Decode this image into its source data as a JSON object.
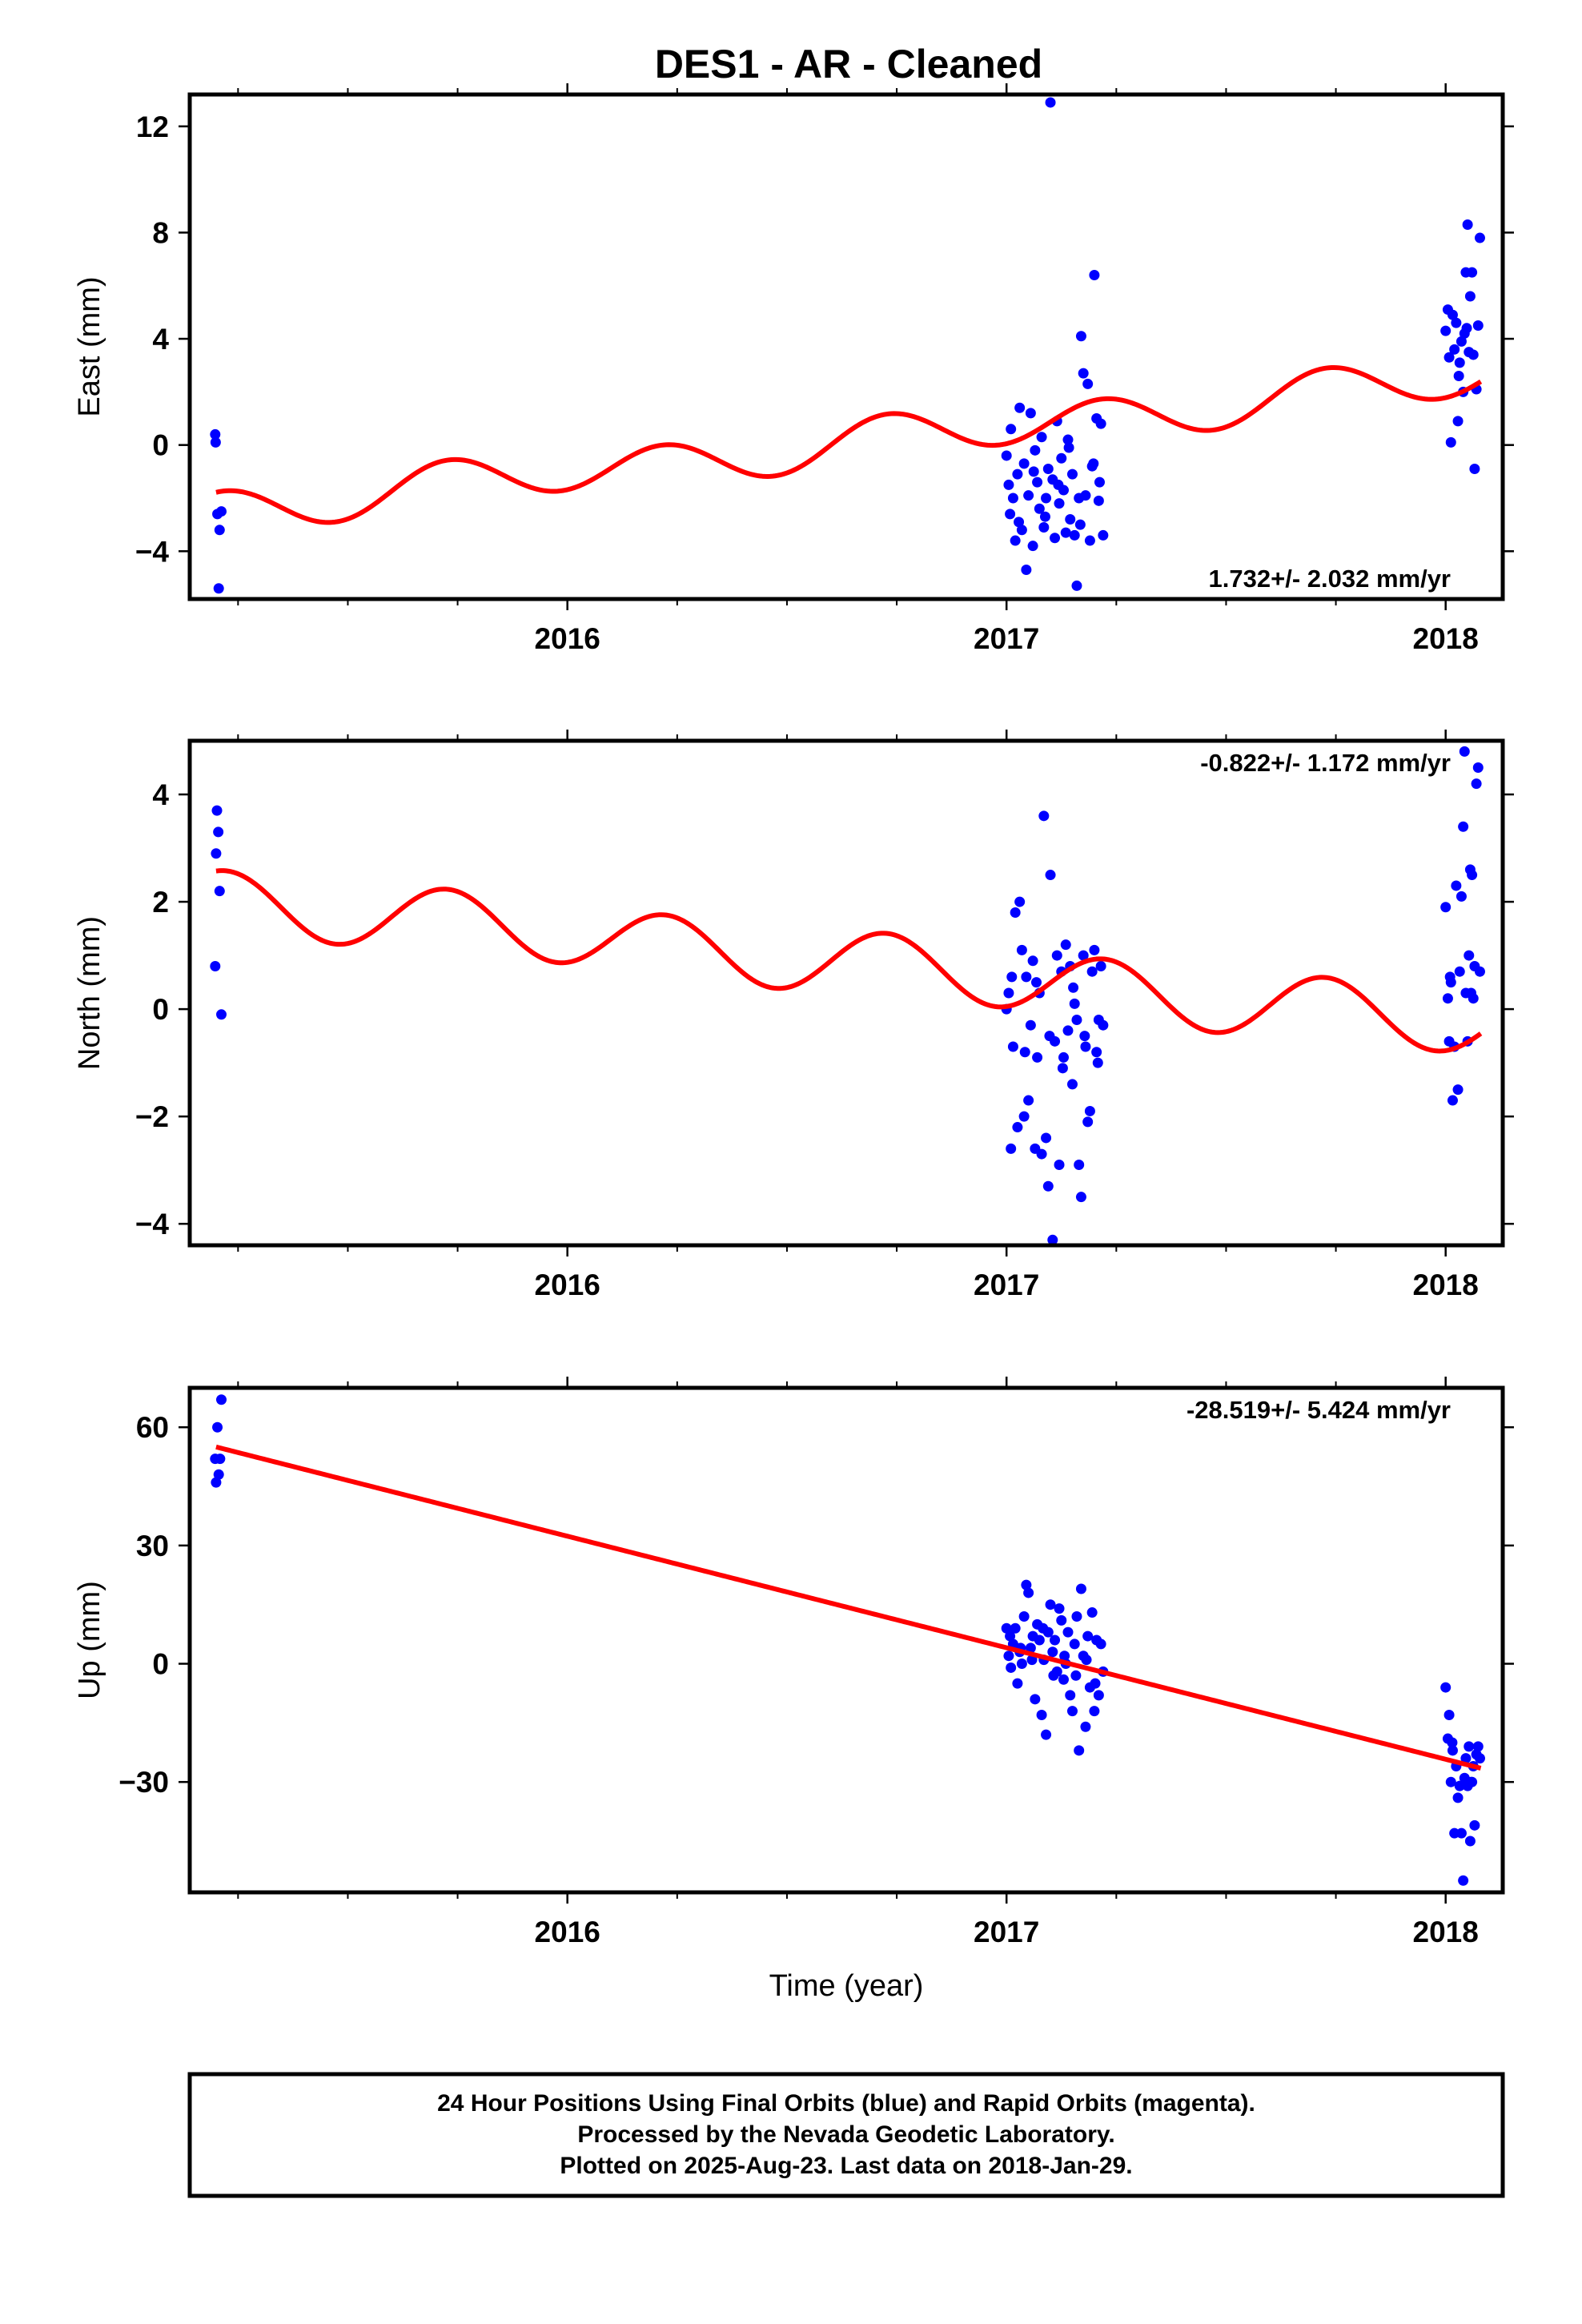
{
  "title": "DES1  - AR - Cleaned",
  "xlabel": "Time (year)",
  "colors": {
    "final_orbits": "#0000ff",
    "model": "#ff0000",
    "frame": "#000000"
  },
  "footer": {
    "line1": "24 Hour Positions Using Final Orbits (blue) and Rapid Orbits (magenta).",
    "line2": "Processed by the Nevada Geodetic Laboratory.",
    "line3": "Plotted on 2025-Aug-23. Last data on 2018-Jan-29."
  },
  "chart_data": [
    {
      "type": "scatter",
      "name": "east",
      "ylabel": "East (mm)",
      "xlim": [
        2015.14,
        2018.13
      ],
      "ylim": [
        -5.8,
        13.2
      ],
      "yticks": [
        -4,
        0,
        4,
        8,
        12
      ],
      "yticklabels": [
        "−4",
        "0",
        "4",
        "8",
        "12"
      ],
      "xticks": [
        2016,
        2017,
        2018
      ],
      "xticklabels": [
        "2016",
        "2017",
        "2018"
      ],
      "xminor": [
        2015.25,
        2015.5,
        2015.75,
        2016.25,
        2016.5,
        2016.75,
        2017.25,
        2017.5,
        2017.75
      ],
      "rate_label": "1.732+/- 2.032 mm/yr",
      "rate_position": "bottom-right",
      "model": {
        "kind": "seasonal",
        "t0": 2016.6,
        "offset": 0.0,
        "slope": 1.732,
        "annual_sin": 0.2,
        "annual_cos": 0.0,
        "semiannual_sin": 0.8,
        "semiannual_cos": 0.0,
        "start": 2015.2,
        "end": 2018.08
      },
      "points": [
        [
          2015.198,
          0.4
        ],
        [
          2015.199,
          0.1
        ],
        [
          2015.203,
          -2.6
        ],
        [
          2015.208,
          -3.2
        ],
        [
          2015.212,
          -2.5
        ],
        [
          2015.206,
          -5.4
        ],
        [
          2017.0,
          -0.4
        ],
        [
          2017.005,
          -1.5
        ],
        [
          2017.01,
          0.6
        ],
        [
          2017.015,
          -2.0
        ],
        [
          2017.02,
          -3.6
        ],
        [
          2017.025,
          -1.1
        ],
        [
          2017.03,
          1.4
        ],
        [
          2017.035,
          -3.2
        ],
        [
          2017.04,
          -0.7
        ],
        [
          2017.045,
          -4.7
        ],
        [
          2017.05,
          -1.9
        ],
        [
          2017.055,
          1.2
        ],
        [
          2017.06,
          -3.8
        ],
        [
          2017.065,
          -0.2
        ],
        [
          2017.07,
          -1.4
        ],
        [
          2017.075,
          -2.4
        ],
        [
          2017.08,
          0.3
        ],
        [
          2017.085,
          -3.1
        ],
        [
          2017.09,
          -2.0
        ],
        [
          2017.095,
          -0.9
        ],
        [
          2017.1,
          12.9
        ],
        [
          2017.105,
          -1.3
        ],
        [
          2017.11,
          -3.5
        ],
        [
          2017.115,
          0.9
        ],
        [
          2017.12,
          -2.2
        ],
        [
          2017.125,
          -0.5
        ],
        [
          2017.13,
          -1.7
        ],
        [
          2017.135,
          -3.3
        ],
        [
          2017.14,
          0.2
        ],
        [
          2017.145,
          -2.8
        ],
        [
          2017.15,
          -1.1
        ],
        [
          2017.155,
          -3.4
        ],
        [
          2017.16,
          -5.3
        ],
        [
          2017.165,
          -2.0
        ],
        [
          2017.17,
          4.1
        ],
        [
          2017.175,
          2.7
        ],
        [
          2017.18,
          -1.9
        ],
        [
          2017.185,
          2.3
        ],
        [
          2017.19,
          -3.6
        ],
        [
          2017.195,
          -0.8
        ],
        [
          2017.2,
          6.4
        ],
        [
          2017.205,
          1.0
        ],
        [
          2017.21,
          -2.1
        ],
        [
          2017.215,
          0.8
        ],
        [
          2017.22,
          -3.4
        ],
        [
          2017.008,
          -2.6
        ],
        [
          2017.028,
          -2.9
        ],
        [
          2017.062,
          -1.0
        ],
        [
          2017.088,
          -2.7
        ],
        [
          2017.118,
          -1.5
        ],
        [
          2017.142,
          -0.1
        ],
        [
          2017.168,
          -3.0
        ],
        [
          2017.198,
          -0.7
        ],
        [
          2017.212,
          -1.4
        ],
        [
          2018.0,
          4.3
        ],
        [
          2018.005,
          5.1
        ],
        [
          2018.008,
          3.3
        ],
        [
          2018.012,
          0.1
        ],
        [
          2018.016,
          4.9
        ],
        [
          2018.02,
          3.6
        ],
        [
          2018.024,
          4.6
        ],
        [
          2018.028,
          0.9
        ],
        [
          2018.032,
          3.1
        ],
        [
          2018.036,
          3.9
        ],
        [
          2018.04,
          2.0
        ],
        [
          2018.043,
          4.2
        ],
        [
          2018.046,
          6.5
        ],
        [
          2018.05,
          8.3
        ],
        [
          2018.053,
          3.5
        ],
        [
          2018.056,
          5.6
        ],
        [
          2018.06,
          6.5
        ],
        [
          2018.063,
          3.4
        ],
        [
          2018.066,
          -0.9
        ],
        [
          2018.07,
          2.1
        ],
        [
          2018.074,
          4.5
        ],
        [
          2018.078,
          7.8
        ],
        [
          2018.03,
          2.6
        ],
        [
          2018.048,
          4.4
        ]
      ]
    },
    {
      "type": "scatter",
      "name": "north",
      "ylabel": "North (mm)",
      "xlim": [
        2015.14,
        2018.13
      ],
      "ylim": [
        -4.4,
        5.0
      ],
      "yticks": [
        -4,
        -2,
        0,
        2,
        4
      ],
      "yticklabels": [
        "−4",
        "−2",
        "0",
        "2",
        "4"
      ],
      "xticks": [
        2016,
        2017,
        2018
      ],
      "xticklabels": [
        "2016",
        "2017",
        "2018"
      ],
      "xminor": [
        2015.25,
        2015.5,
        2015.75,
        2016.25,
        2016.5,
        2016.75,
        2017.25,
        2017.5,
        2017.75
      ],
      "rate_label": "-0.822+/- 1.172 mm/yr",
      "rate_position": "top-right",
      "model": {
        "kind": "seasonal",
        "t0": 2016.6,
        "offset": 0.9,
        "slope": -0.822,
        "annual_sin": 0.05,
        "annual_cos": 0.0,
        "semiannual_sin": 0.58,
        "semiannual_cos": 0.0,
        "start": 2015.2,
        "end": 2018.08
      },
      "points": [
        [
          2015.198,
          0.8
        ],
        [
          2015.202,
          3.7
        ],
        [
          2015.205,
          3.3
        ],
        [
          2015.2,
          2.9
        ],
        [
          2015.208,
          2.2
        ],
        [
          2015.212,
          -0.1
        ],
        [
          2017.0,
          0.0
        ],
        [
          2017.005,
          0.3
        ],
        [
          2017.01,
          -2.6
        ],
        [
          2017.015,
          -0.7
        ],
        [
          2017.02,
          1.8
        ],
        [
          2017.025,
          -2.2
        ],
        [
          2017.03,
          2.0
        ],
        [
          2017.035,
          1.1
        ],
        [
          2017.04,
          -2.0
        ],
        [
          2017.045,
          0.6
        ],
        [
          2017.05,
          -1.7
        ],
        [
          2017.055,
          -0.3
        ],
        [
          2017.06,
          0.9
        ],
        [
          2017.065,
          -2.6
        ],
        [
          2017.07,
          -0.9
        ],
        [
          2017.075,
          0.3
        ],
        [
          2017.08,
          -2.7
        ],
        [
          2017.085,
          3.6
        ],
        [
          2017.09,
          -2.4
        ],
        [
          2017.095,
          -3.3
        ],
        [
          2017.1,
          2.5
        ],
        [
          2017.105,
          -4.3
        ],
        [
          2017.11,
          -0.6
        ],
        [
          2017.115,
          1.0
        ],
        [
          2017.12,
          -2.9
        ],
        [
          2017.125,
          0.7
        ],
        [
          2017.13,
          -0.9
        ],
        [
          2017.135,
          1.2
        ],
        [
          2017.14,
          -0.4
        ],
        [
          2017.145,
          0.8
        ],
        [
          2017.15,
          -1.4
        ],
        [
          2017.155,
          0.1
        ],
        [
          2017.16,
          -0.2
        ],
        [
          2017.165,
          -2.9
        ],
        [
          2017.17,
          -3.5
        ],
        [
          2017.175,
          1.0
        ],
        [
          2017.18,
          -0.7
        ],
        [
          2017.185,
          -2.1
        ],
        [
          2017.19,
          -1.9
        ],
        [
          2017.195,
          0.7
        ],
        [
          2017.2,
          1.1
        ],
        [
          2017.205,
          -0.8
        ],
        [
          2017.21,
          -0.2
        ],
        [
          2017.215,
          0.8
        ],
        [
          2017.22,
          -0.3
        ],
        [
          2017.012,
          0.6
        ],
        [
          2017.042,
          -0.8
        ],
        [
          2017.068,
          0.5
        ],
        [
          2017.098,
          -0.5
        ],
        [
          2017.128,
          -1.1
        ],
        [
          2017.152,
          0.4
        ],
        [
          2017.178,
          -0.5
        ],
        [
          2017.208,
          -1.0
        ],
        [
          2018.0,
          1.9
        ],
        [
          2018.005,
          0.2
        ],
        [
          2018.008,
          -0.6
        ],
        [
          2018.012,
          0.5
        ],
        [
          2018.016,
          -1.7
        ],
        [
          2018.02,
          -0.7
        ],
        [
          2018.024,
          2.3
        ],
        [
          2018.028,
          -1.5
        ],
        [
          2018.032,
          0.7
        ],
        [
          2018.036,
          2.1
        ],
        [
          2018.04,
          3.4
        ],
        [
          2018.043,
          4.8
        ],
        [
          2018.046,
          0.3
        ],
        [
          2018.05,
          -0.6
        ],
        [
          2018.053,
          1.0
        ],
        [
          2018.056,
          2.6
        ],
        [
          2018.06,
          2.5
        ],
        [
          2018.063,
          0.2
        ],
        [
          2018.066,
          0.8
        ],
        [
          2018.07,
          4.2
        ],
        [
          2018.074,
          4.5
        ],
        [
          2018.078,
          0.7
        ],
        [
          2018.01,
          0.6
        ],
        [
          2018.058,
          0.3
        ]
      ]
    },
    {
      "type": "scatter",
      "name": "up",
      "ylabel": "Up (mm)",
      "xlim": [
        2015.14,
        2018.13
      ],
      "ylim": [
        -58,
        70
      ],
      "yticks": [
        -30,
        0,
        30,
        60
      ],
      "yticklabels": [
        "−30",
        "0",
        "30",
        "60"
      ],
      "xticks": [
        2016,
        2017,
        2018
      ],
      "xticklabels": [
        "2016",
        "2017",
        "2018"
      ],
      "xminor": [
        2015.25,
        2015.5,
        2015.75,
        2016.25,
        2016.5,
        2016.75,
        2017.25,
        2017.5,
        2017.75
      ],
      "rate_label": "-28.519+/- 5.424 mm/yr",
      "rate_position": "top-right",
      "model": {
        "kind": "linear",
        "x": [
          2015.2,
          2018.08
        ],
        "y": [
          55.0,
          -26.5
        ]
      },
      "points": [
        [
          2015.198,
          52
        ],
        [
          2015.2,
          46
        ],
        [
          2015.203,
          60
        ],
        [
          2015.206,
          48
        ],
        [
          2015.209,
          52
        ],
        [
          2015.212,
          67
        ],
        [
          2017.0,
          9
        ],
        [
          2017.005,
          2
        ],
        [
          2017.01,
          -1
        ],
        [
          2017.015,
          5
        ],
        [
          2017.02,
          9
        ],
        [
          2017.025,
          -5
        ],
        [
          2017.03,
          3
        ],
        [
          2017.035,
          0
        ],
        [
          2017.04,
          12
        ],
        [
          2017.045,
          20
        ],
        [
          2017.05,
          18
        ],
        [
          2017.055,
          4
        ],
        [
          2017.06,
          7
        ],
        [
          2017.065,
          -9
        ],
        [
          2017.07,
          10
        ],
        [
          2017.075,
          6
        ],
        [
          2017.08,
          -13
        ],
        [
          2017.085,
          1
        ],
        [
          2017.09,
          -18
        ],
        [
          2017.095,
          8
        ],
        [
          2017.1,
          15
        ],
        [
          2017.105,
          3
        ],
        [
          2017.11,
          6
        ],
        [
          2017.115,
          -2
        ],
        [
          2017.12,
          14
        ],
        [
          2017.125,
          11
        ],
        [
          2017.13,
          -4
        ],
        [
          2017.135,
          0
        ],
        [
          2017.14,
          8
        ],
        [
          2017.145,
          -8
        ],
        [
          2017.15,
          -12
        ],
        [
          2017.155,
          5
        ],
        [
          2017.16,
          12
        ],
        [
          2017.165,
          -22
        ],
        [
          2017.17,
          19
        ],
        [
          2017.175,
          2
        ],
        [
          2017.18,
          -16
        ],
        [
          2017.185,
          7
        ],
        [
          2017.19,
          -6
        ],
        [
          2017.195,
          13
        ],
        [
          2017.2,
          -12
        ],
        [
          2017.205,
          6
        ],
        [
          2017.21,
          -8
        ],
        [
          2017.215,
          5
        ],
        [
          2017.22,
          -2
        ],
        [
          2017.008,
          7
        ],
        [
          2017.032,
          4
        ],
        [
          2017.058,
          1
        ],
        [
          2017.083,
          9
        ],
        [
          2017.107,
          -3
        ],
        [
          2017.132,
          2
        ],
        [
          2017.158,
          -3
        ],
        [
          2017.182,
          1
        ],
        [
          2017.202,
          -5
        ],
        [
          2018.0,
          -6
        ],
        [
          2018.005,
          -19
        ],
        [
          2018.008,
          -13
        ],
        [
          2018.012,
          -30
        ],
        [
          2018.016,
          -22
        ],
        [
          2018.02,
          -43
        ],
        [
          2018.024,
          -26
        ],
        [
          2018.028,
          -34
        ],
        [
          2018.032,
          -31
        ],
        [
          2018.036,
          -43
        ],
        [
          2018.04,
          -55
        ],
        [
          2018.043,
          -29
        ],
        [
          2018.046,
          -24
        ],
        [
          2018.05,
          -31
        ],
        [
          2018.053,
          -21
        ],
        [
          2018.056,
          -45
        ],
        [
          2018.06,
          -30
        ],
        [
          2018.063,
          -26
        ],
        [
          2018.066,
          -41
        ],
        [
          2018.07,
          -23
        ],
        [
          2018.074,
          -21
        ],
        [
          2018.078,
          -24
        ],
        [
          2018.015,
          -20
        ],
        [
          2018.058,
          -30
        ]
      ]
    }
  ]
}
